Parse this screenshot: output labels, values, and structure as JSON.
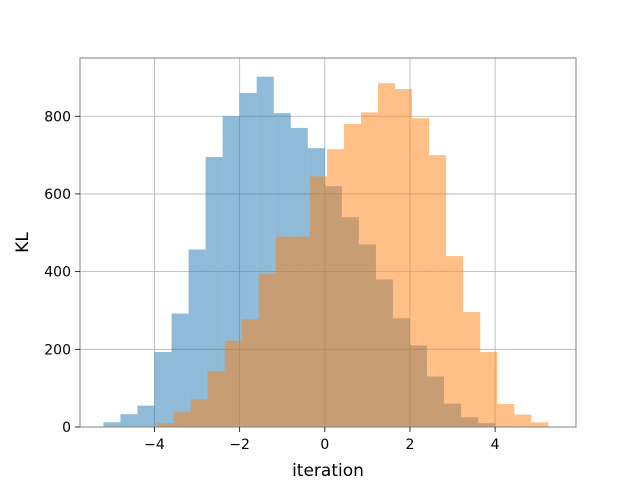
{
  "chart_data": {
    "type": "bar",
    "title": "",
    "xlabel": "iteration",
    "ylabel": "KL",
    "xlim": [
      -5.75,
      5.9
    ],
    "ylim": [
      0,
      950
    ],
    "x_ticks": [
      -4,
      -2,
      0,
      2,
      4
    ],
    "x_tick_labels": [
      "−4",
      "−2",
      "0",
      "2",
      "4"
    ],
    "y_ticks": [
      0,
      200,
      400,
      600,
      800
    ],
    "y_tick_labels": [
      "0",
      "200",
      "400",
      "600",
      "800"
    ],
    "grid": true,
    "overlay_alpha": 0.5,
    "series": [
      {
        "color": "#1f77b4",
        "bins": [
          [
            -5.2,
            -4.8,
            12
          ],
          [
            -4.8,
            -4.4,
            33
          ],
          [
            -4.4,
            -4.0,
            55
          ],
          [
            -4.0,
            -3.6,
            193
          ],
          [
            -3.6,
            -3.2,
            292
          ],
          [
            -3.2,
            -2.8,
            457
          ],
          [
            -2.8,
            -2.4,
            695
          ],
          [
            -2.4,
            -2.0,
            800
          ],
          [
            -2.0,
            -1.6,
            860
          ],
          [
            -1.6,
            -1.2,
            902
          ],
          [
            -1.2,
            -0.8,
            808
          ],
          [
            -0.8,
            -0.4,
            770
          ],
          [
            -0.4,
            0.0,
            718
          ],
          [
            0.0,
            0.4,
            620
          ],
          [
            0.4,
            0.8,
            540
          ],
          [
            0.8,
            1.2,
            470
          ],
          [
            1.2,
            1.6,
            380
          ],
          [
            1.6,
            2.0,
            280
          ],
          [
            2.0,
            2.4,
            210
          ],
          [
            2.4,
            2.8,
            130
          ],
          [
            2.8,
            3.2,
            60
          ],
          [
            3.2,
            3.6,
            25
          ],
          [
            3.6,
            4.0,
            10
          ]
        ]
      },
      {
        "color": "#ff7f0e",
        "bins": [
          [
            -3.95,
            -3.55,
            10
          ],
          [
            -3.55,
            -3.15,
            38
          ],
          [
            -3.15,
            -2.75,
            72
          ],
          [
            -2.75,
            -2.35,
            143
          ],
          [
            -2.35,
            -1.95,
            222
          ],
          [
            -1.95,
            -1.55,
            278
          ],
          [
            -1.55,
            -1.15,
            395
          ],
          [
            -1.15,
            -0.75,
            490
          ],
          [
            -0.75,
            -0.35,
            490
          ],
          [
            -0.35,
            0.05,
            645
          ],
          [
            0.05,
            0.45,
            715
          ],
          [
            0.45,
            0.85,
            780
          ],
          [
            0.85,
            1.25,
            810
          ],
          [
            1.25,
            1.65,
            885
          ],
          [
            1.65,
            2.05,
            870
          ],
          [
            2.05,
            2.45,
            795
          ],
          [
            2.45,
            2.85,
            700
          ],
          [
            2.85,
            3.25,
            440
          ],
          [
            3.25,
            3.65,
            296
          ],
          [
            3.65,
            4.05,
            193
          ],
          [
            4.05,
            4.45,
            59
          ],
          [
            4.45,
            4.85,
            32
          ],
          [
            4.85,
            5.25,
            12
          ]
        ]
      }
    ]
  }
}
